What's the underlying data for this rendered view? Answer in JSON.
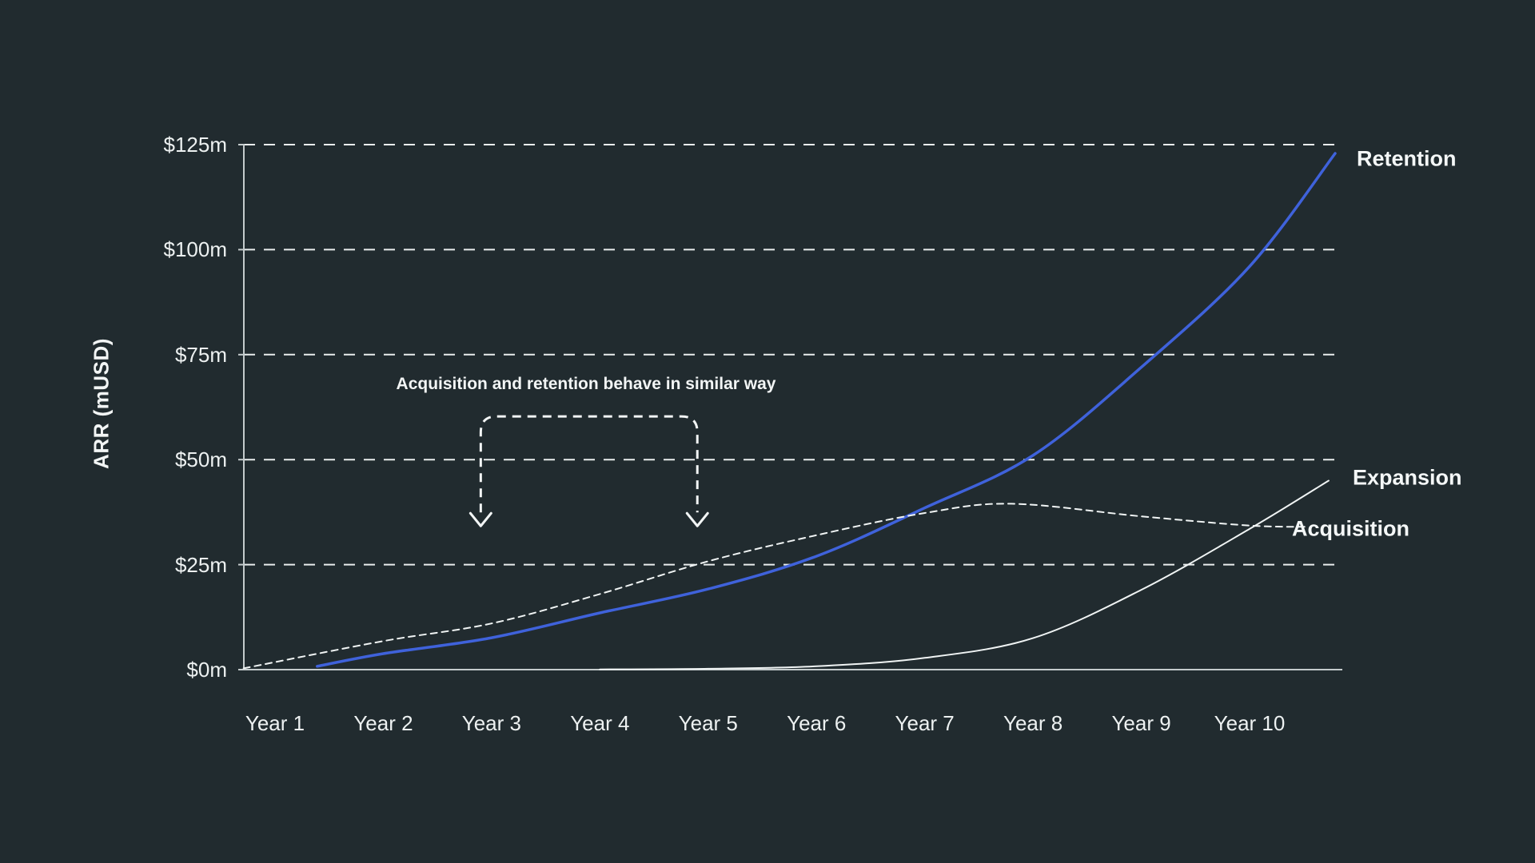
{
  "figure": {
    "background_color": "#212B2F",
    "text_color": "#F2F5F5",
    "axis_color": "#C4CBCC",
    "gridline_color": "#E9EDED",
    "accent_blue": "#3F62DB"
  },
  "chart_data": {
    "type": "line",
    "title": "",
    "xlabel": "",
    "ylabel": "ARR (mUSD)",
    "ylim": [
      0,
      125
    ],
    "grid": "horizontal dashed",
    "legend_position": "direct-labels-right",
    "x_axis": {
      "categories": [
        "Year 1",
        "Year 2",
        "Year 3",
        "Year 4",
        "Year 5",
        "Year 6",
        "Year 7",
        "Year 8",
        "Year 9",
        "Year 10"
      ]
    },
    "y_axis": {
      "ticks": [
        {
          "value": 0,
          "label": "$0m"
        },
        {
          "value": 25,
          "label": "$25m"
        },
        {
          "value": 50,
          "label": "$50m"
        },
        {
          "value": 75,
          "label": "$75m"
        },
        {
          "value": 100,
          "label": "$100m"
        },
        {
          "value": 125,
          "label": "$125m"
        }
      ]
    },
    "series": [
      {
        "name": "Retention",
        "color": "#3F62DB",
        "style": "solid",
        "stroke_width": 3.5,
        "dash": "",
        "values_at_years": [
          0,
          4,
          8,
          13.5,
          19,
          27,
          38,
          51,
          72,
          96
        ],
        "value_at_line_end": 123,
        "points": [
          [
            1.39,
            0.8
          ],
          [
            2,
            3.8
          ],
          [
            3,
            7.6
          ],
          [
            4,
            13.5
          ],
          [
            5,
            19.2
          ],
          [
            6,
            27
          ],
          [
            7,
            38.5
          ],
          [
            8,
            51
          ],
          [
            9,
            72
          ],
          [
            10,
            96
          ],
          [
            10.79,
            122.9
          ]
        ]
      },
      {
        "name": "Acquisition",
        "color": "#F0F4F4",
        "style": "dashed",
        "stroke_width": 2,
        "dash": "8 6",
        "values_at_years": [
          1.5,
          7,
          11,
          18,
          26,
          32,
          37.5,
          39.5,
          36.5,
          34.3
        ],
        "value_at_line_end": 34,
        "points": [
          [
            0.71,
            0.3
          ],
          [
            2,
            6.8
          ],
          [
            3,
            11
          ],
          [
            4,
            18
          ],
          [
            5,
            25.8
          ],
          [
            6,
            32
          ],
          [
            7,
            37.3
          ],
          [
            7.8,
            39.5
          ],
          [
            9,
            36.5
          ],
          [
            10,
            34.3
          ],
          [
            10.55,
            34
          ]
        ]
      },
      {
        "name": "Expansion",
        "color": "#F0F4F4",
        "style": "solid",
        "stroke_width": 2,
        "dash": "",
        "values_at_years": [
          0,
          0,
          0,
          0,
          0.2,
          0.8,
          2.8,
          7.5,
          19,
          33.5
        ],
        "value_at_line_end": 45,
        "points": [
          [
            4,
            0.05
          ],
          [
            5,
            0.2
          ],
          [
            6,
            0.8
          ],
          [
            7,
            2.8
          ],
          [
            8,
            7.5
          ],
          [
            9,
            19
          ],
          [
            10,
            33.5
          ],
          [
            10.73,
            45
          ]
        ]
      }
    ],
    "annotation": {
      "text": "Acquisition and retention behave in similar way",
      "bracket": {
        "x_years": [
          2.9,
          4.9
        ],
        "top_value": 60.3,
        "tip_value": 34.2
      }
    }
  }
}
